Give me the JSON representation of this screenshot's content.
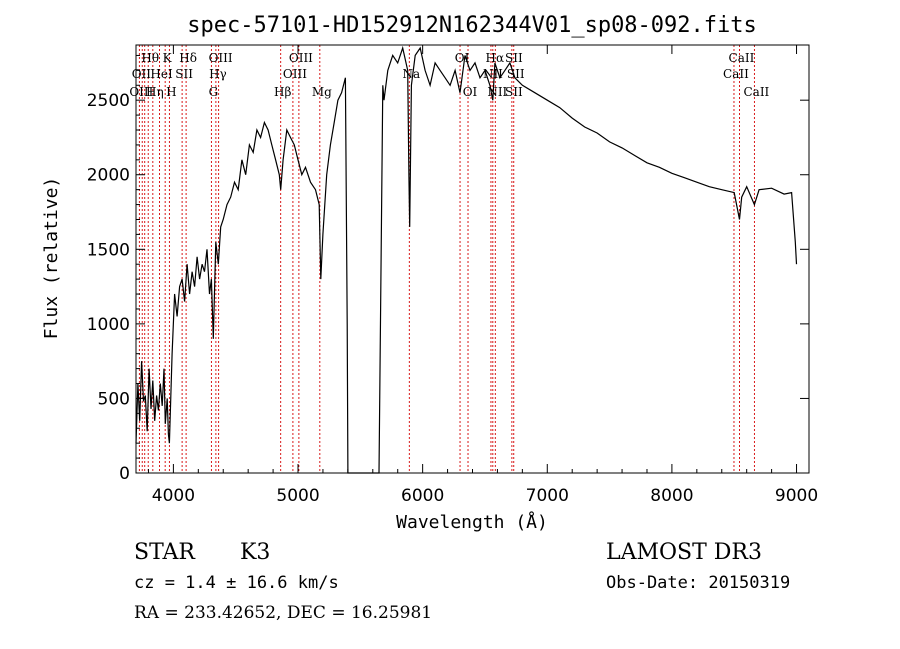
{
  "chart_data": {
    "type": "line",
    "title": "spec-57101-HD152912N162344V01_sp08-092.fits",
    "xlabel": "Wavelength (Å)",
    "ylabel": "Flux (relative)",
    "xlim": [
      3700,
      9100
    ],
    "ylim": [
      0,
      2870
    ],
    "x_ticks": [
      4000,
      5000,
      6000,
      7000,
      8000,
      9000
    ],
    "y_ticks": [
      0,
      500,
      1000,
      1500,
      2000,
      2500
    ],
    "grid": false,
    "series": [
      {
        "x": [
          3700,
          3715,
          3730,
          3745,
          3760,
          3775,
          3790,
          3805,
          3820,
          3835,
          3850,
          3865,
          3880,
          3895,
          3910,
          3925,
          3935,
          3950,
          3960,
          3968,
          3975,
          3990,
          4010,
          4030,
          4050,
          4070,
          4090,
          4110,
          4130,
          4150,
          4170,
          4190,
          4210,
          4230,
          4250,
          4270,
          4290,
          4305,
          4320,
          4340,
          4360,
          4380,
          4400,
          4430,
          4460,
          4490,
          4520,
          4550,
          4580,
          4610,
          4640,
          4670,
          4700,
          4730,
          4760,
          4790,
          4820,
          4850,
          4861,
          4880,
          4910,
          4940,
          4970,
          5000,
          5030,
          5060,
          5100,
          5140,
          5170,
          5183,
          5200,
          5230,
          5260,
          5290,
          5320,
          5350,
          5380,
          5395,
          5400,
          5650,
          5680,
          5690,
          5720,
          5760,
          5800,
          5840,
          5880,
          5890,
          5896,
          5910,
          5940,
          5980,
          6020,
          6060,
          6100,
          6140,
          6180,
          6220,
          6260,
          6300,
          6340,
          6380,
          6420,
          6460,
          6500,
          6540,
          6563,
          6580,
          6620,
          6660,
          6700,
          6740,
          6800,
          6900,
          7000,
          7100,
          7200,
          7300,
          7400,
          7500,
          7600,
          7700,
          7800,
          7900,
          8000,
          8100,
          8200,
          8300,
          8400,
          8500,
          8542,
          8560,
          8600,
          8662,
          8700,
          8800,
          8900,
          8960,
          8990,
          9000
        ],
        "y": [
          200,
          600,
          350,
          750,
          480,
          520,
          280,
          700,
          430,
          620,
          350,
          520,
          420,
          600,
          450,
          700,
          330,
          500,
          260,
          200,
          400,
          800,
          1200,
          1050,
          1250,
          1300,
          1150,
          1400,
          1200,
          1350,
          1250,
          1450,
          1300,
          1400,
          1350,
          1500,
          1200,
          1300,
          900,
          1550,
          1400,
          1650,
          1700,
          1800,
          1850,
          1950,
          1900,
          2100,
          2000,
          2200,
          2150,
          2300,
          2250,
          2350,
          2300,
          2200,
          2100,
          2000,
          1900,
          2100,
          2300,
          2250,
          2200,
          2100,
          2000,
          2050,
          1950,
          1900,
          1800,
          1300,
          1600,
          2000,
          2200,
          2350,
          2500,
          2550,
          2650,
          1000,
          0,
          0,
          2600,
          2500,
          2700,
          2800,
          2750,
          2850,
          2700,
          2000,
          1650,
          2600,
          2800,
          2850,
          2700,
          2600,
          2750,
          2700,
          2650,
          2600,
          2700,
          2550,
          2800,
          2700,
          2750,
          2650,
          2700,
          2600,
          2500,
          2750,
          2650,
          2700,
          2750,
          2650,
          2600,
          2550,
          2500,
          2450,
          2380,
          2320,
          2280,
          2220,
          2180,
          2130,
          2080,
          2050,
          2010,
          1980,
          1950,
          1920,
          1900,
          1880,
          1700,
          1850,
          1920,
          1800,
          1900,
          1910,
          1870,
          1880,
          1550,
          1400
        ]
      }
    ],
    "line_labels": [
      {
        "label": "Hθ",
        "wl": 3798,
        "row": 1
      },
      {
        "label": "OII",
        "wl": 3727,
        "row": 2
      },
      {
        "label": "Hη",
        "wl": 3835,
        "row": 3
      },
      {
        "label": "OIII",
        "wl": 3727,
        "row": 3
      },
      {
        "label": "K",
        "wl": 3934,
        "row": 1
      },
      {
        "label": "HeI",
        "wl": 3889,
        "row": 2
      },
      {
        "label": "SII",
        "wl": 4070,
        "row": 2
      },
      {
        "label": "H",
        "wl": 3968,
        "row": 3
      },
      {
        "label": "Hδ",
        "wl": 4102,
        "row": 1
      },
      {
        "label": "OIII",
        "wl": 4363,
        "row": 1
      },
      {
        "label": "Hγ",
        "wl": 4341,
        "row": 2
      },
      {
        "label": "G",
        "wl": 4305,
        "row": 3
      },
      {
        "label": "OIII",
        "wl": 5007,
        "row": 1
      },
      {
        "label": "OIII",
        "wl": 4959,
        "row": 2
      },
      {
        "label": "Hβ",
        "wl": 4861,
        "row": 3
      },
      {
        "label": "Mg",
        "wl": 5175,
        "row": 3
      },
      {
        "label": "Na",
        "wl": 5893,
        "row": 2
      },
      {
        "label": "OI",
        "wl": 6300,
        "row": 1
      },
      {
        "label": "OI",
        "wl": 6364,
        "row": 3
      },
      {
        "label": "Hα",
        "wl": 6563,
        "row": 1
      },
      {
        "label": "SII",
        "wl": 6716,
        "row": 1
      },
      {
        "label": "NII",
        "wl": 6548,
        "row": 2
      },
      {
        "label": "SII",
        "wl": 6731,
        "row": 2
      },
      {
        "label": "NII",
        "wl": 6583,
        "row": 3
      },
      {
        "label": "SII",
        "wl": 6716,
        "row": 3
      },
      {
        "label": "CaII",
        "wl": 8542,
        "row": 1
      },
      {
        "label": "CaII",
        "wl": 8498,
        "row": 2
      },
      {
        "label": "CaII",
        "wl": 8662,
        "row": 3
      }
    ],
    "marker_lines_wl": [
      3727,
      3750,
      3770,
      3798,
      3835,
      3889,
      3934,
      3968,
      4070,
      4102,
      4305,
      4341,
      4363,
      4861,
      4959,
      5007,
      5175,
      5893,
      6300,
      6364,
      6548,
      6563,
      6583,
      6716,
      6731,
      8498,
      8542,
      8662
    ],
    "colors": {
      "spectrum": "#000000",
      "marker_lines": "#d40000",
      "axes": "#000000"
    }
  },
  "info": {
    "object_class": "STAR",
    "subclass": "K3",
    "survey": "LAMOST DR3",
    "redshift": "cz = 1.4 ± 16.6 km/s",
    "obs_date": "Obs-Date: 20150319",
    "coords": "RA = 233.42652, DEC =  16.25981"
  }
}
